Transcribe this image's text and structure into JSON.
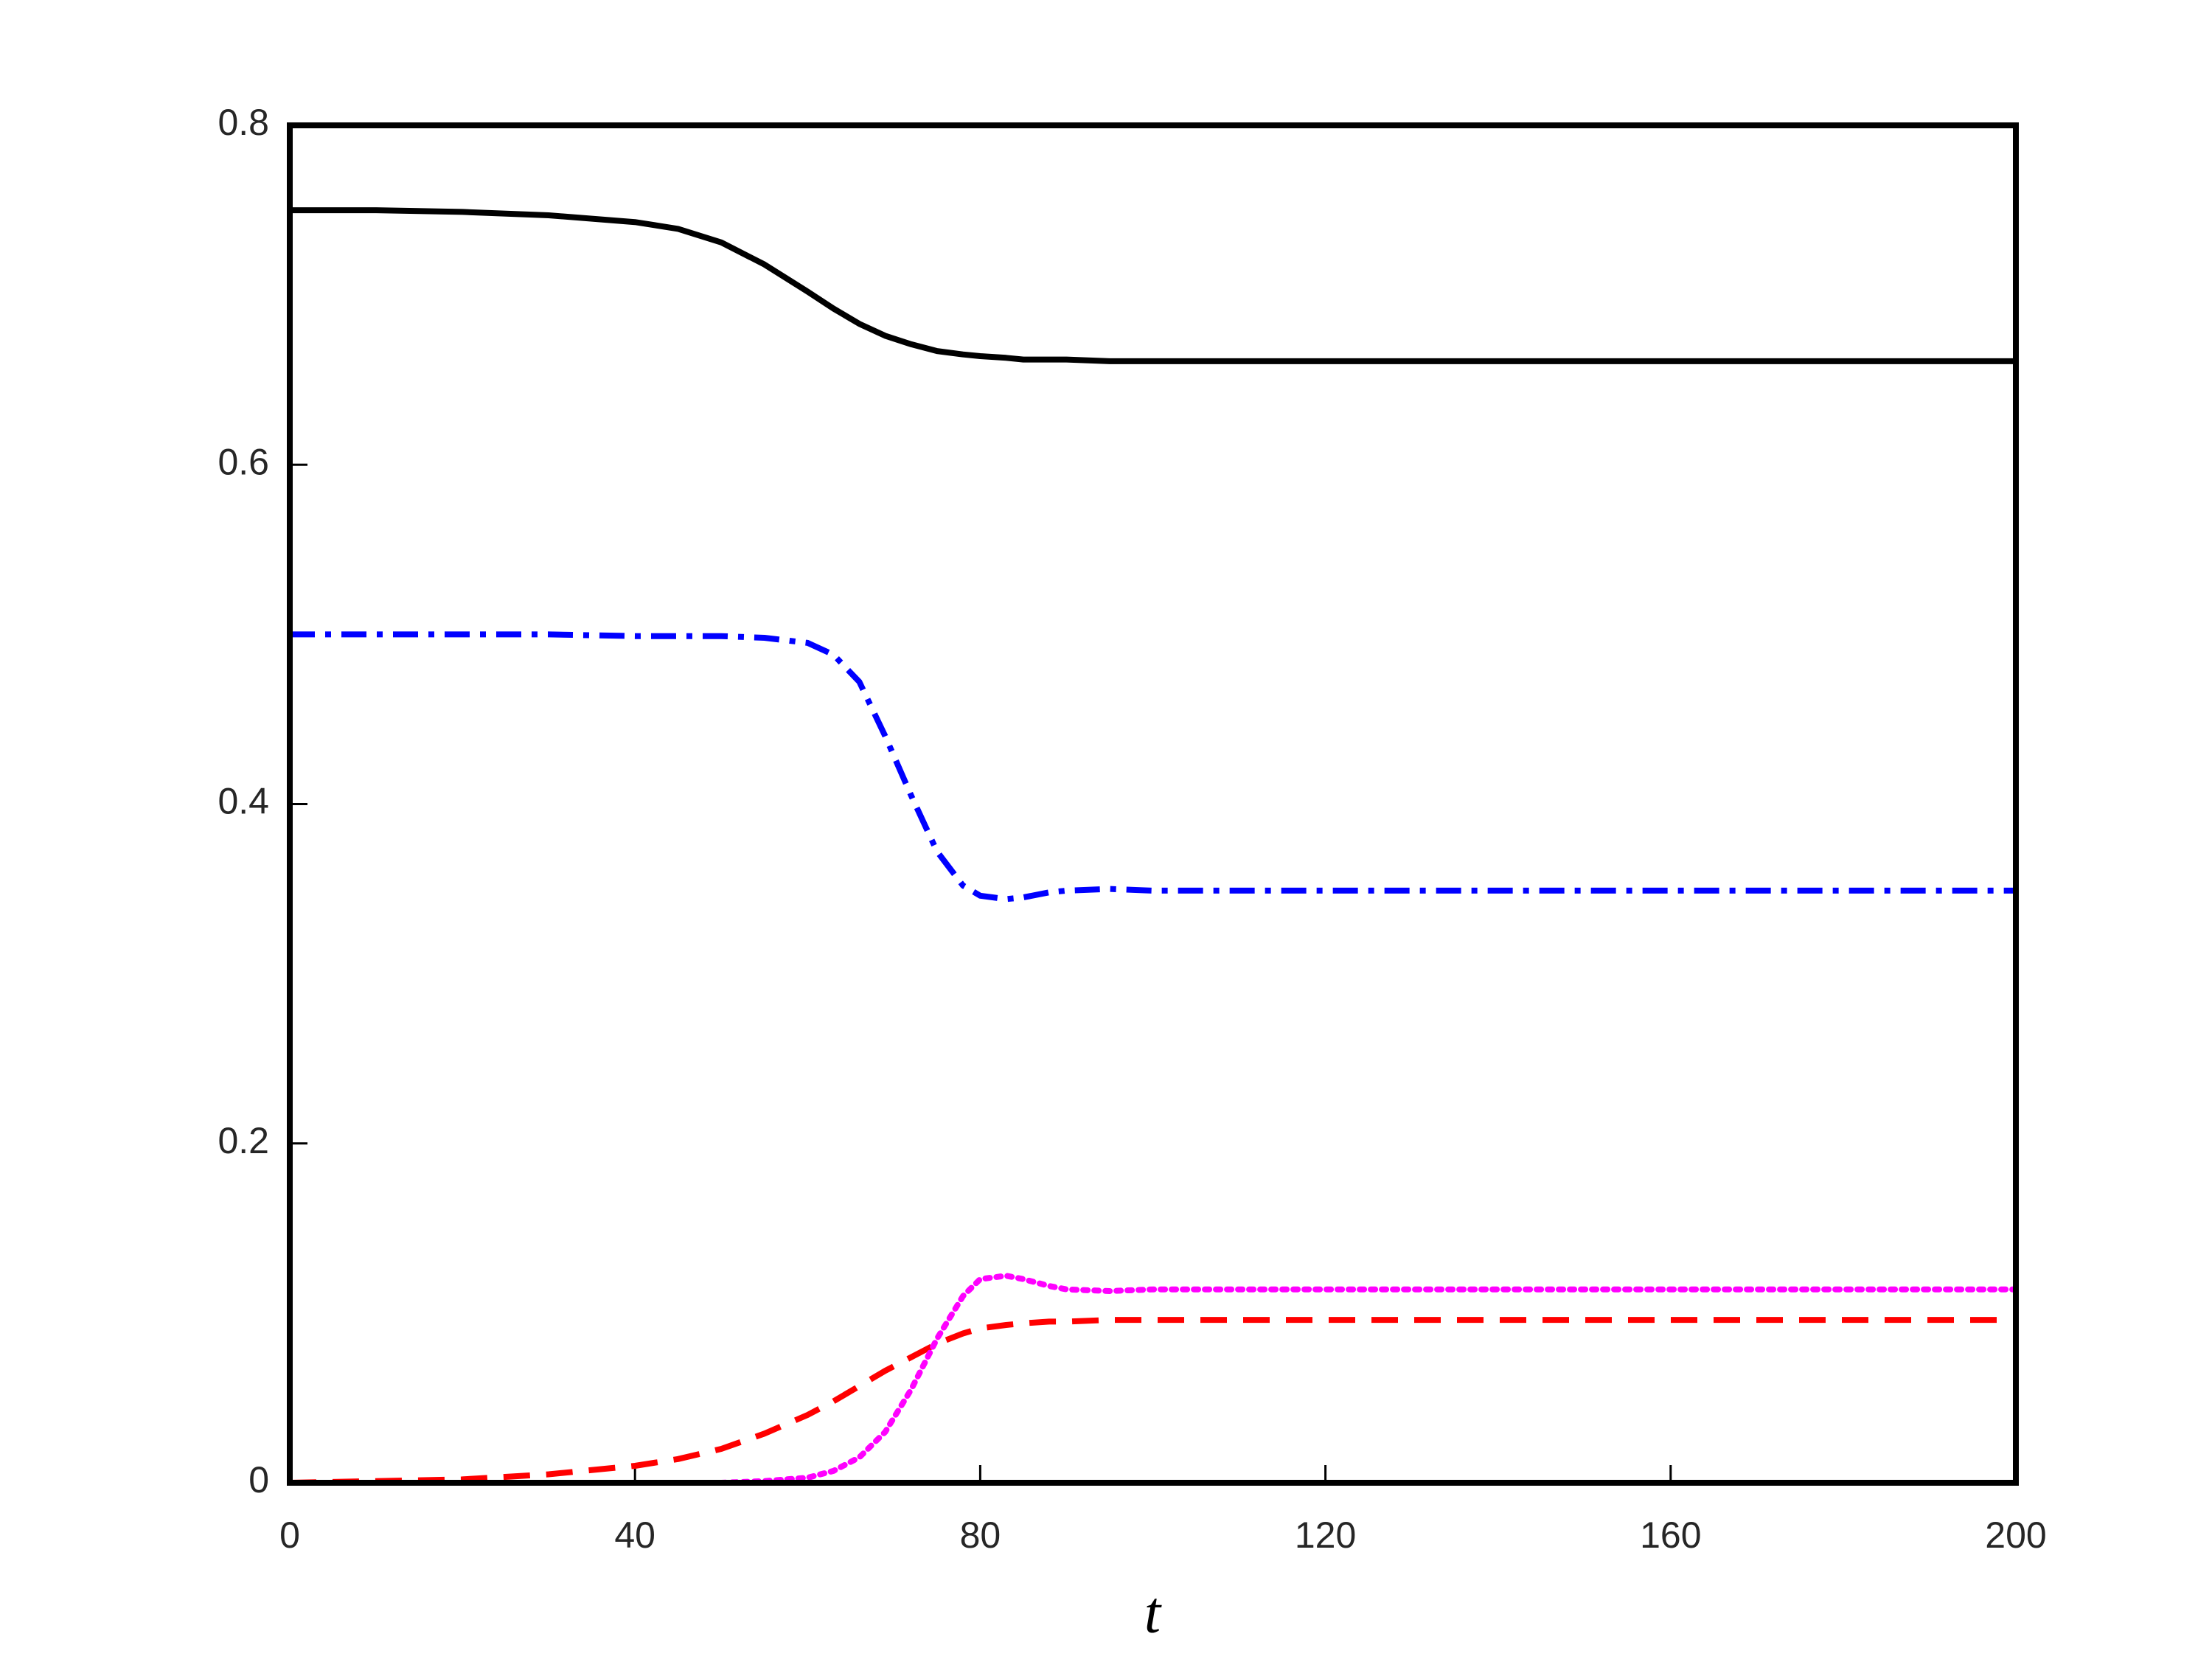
{
  "chart_data": {
    "type": "line",
    "x": [
      0,
      10,
      20,
      30,
      40,
      45,
      50,
      55,
      60,
      63,
      66,
      69,
      72,
      75,
      78,
      80,
      83,
      85,
      88,
      90,
      95,
      100,
      120,
      140,
      160,
      180,
      200
    ],
    "series": [
      {
        "color": "#000000",
        "linestyle": "solid",
        "values": [
          0.75,
          0.75,
          0.749,
          0.747,
          0.743,
          0.739,
          0.731,
          0.718,
          0.702,
          0.692,
          0.683,
          0.676,
          0.671,
          0.667,
          0.665,
          0.664,
          0.663,
          0.662,
          0.662,
          0.662,
          0.661,
          0.661,
          0.661,
          0.661,
          0.661,
          0.661,
          0.661
        ]
      },
      {
        "color": "#0000ff",
        "linestyle": "dashdot",
        "values": [
          0.5,
          0.5,
          0.5,
          0.5,
          0.499,
          0.499,
          0.499,
          0.498,
          0.495,
          0.488,
          0.472,
          0.44,
          0.405,
          0.372,
          0.352,
          0.346,
          0.344,
          0.345,
          0.348,
          0.349,
          0.35,
          0.349,
          0.349,
          0.349,
          0.349,
          0.349,
          0.349
        ]
      },
      {
        "color": "#ff0000",
        "linestyle": "dashed",
        "values": [
          0,
          0.001,
          0.002,
          0.005,
          0.01,
          0.014,
          0.02,
          0.029,
          0.04,
          0.048,
          0.057,
          0.066,
          0.074,
          0.082,
          0.088,
          0.091,
          0.093,
          0.094,
          0.095,
          0.095,
          0.096,
          0.096,
          0.096,
          0.096,
          0.096,
          0.096,
          0.096
        ]
      },
      {
        "color": "#ff00ff",
        "linestyle": "dotted",
        "values": [
          0,
          0,
          0,
          0,
          0,
          0,
          0,
          0.001,
          0.003,
          0.007,
          0.015,
          0.03,
          0.055,
          0.085,
          0.11,
          0.12,
          0.122,
          0.12,
          0.116,
          0.114,
          0.113,
          0.114,
          0.114,
          0.114,
          0.114,
          0.114,
          0.114
        ]
      }
    ],
    "x_label": "t",
    "xlim": [
      0,
      200
    ],
    "xticks": [
      0,
      40,
      80,
      120,
      160,
      200
    ],
    "ylim": [
      0,
      0.8
    ],
    "yticks": [
      0,
      0.2,
      0.4,
      0.6,
      0.8
    ],
    "grid": false
  }
}
